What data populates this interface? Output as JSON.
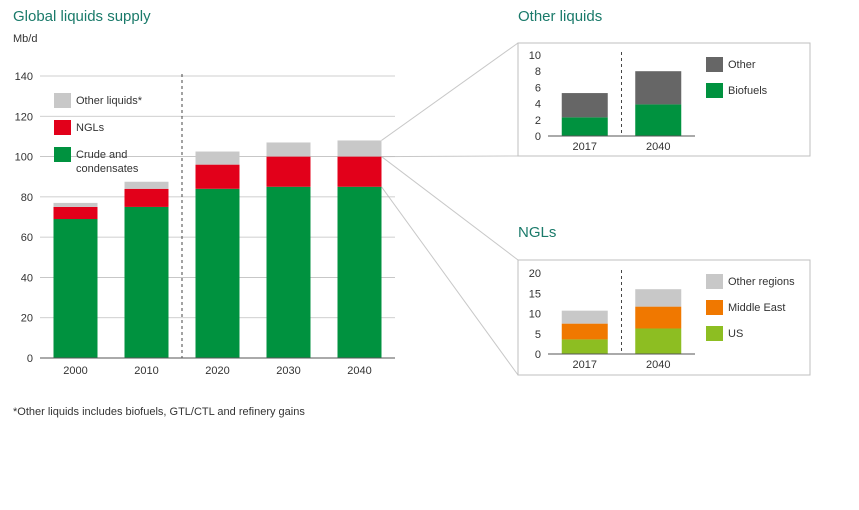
{
  "footnote": "*Other liquids includes biofuels, GTL/CTL and refinery gains",
  "colors": {
    "crude": "#00923f",
    "ngls": "#e2001a",
    "other_liquids": "#c8c8c8",
    "other_dark": "#666666",
    "biofuels": "#00923f",
    "ngl_other_regions": "#c8c8c8",
    "ngl_middle_east": "#f07800",
    "ngl_us": "#8dbe22",
    "title": "#1a7a6a"
  },
  "chart_data": [
    {
      "type": "bar",
      "stacked": true,
      "title": "Global liquids supply",
      "ylabel": "Mb/d",
      "categories": [
        "2000",
        "2010",
        "2020",
        "2030",
        "2040"
      ],
      "ylim": [
        0,
        140
      ],
      "yticks": [
        0,
        20,
        40,
        60,
        80,
        100,
        120,
        140
      ],
      "grid": true,
      "legend": "top-left",
      "series": [
        {
          "name": "Crude and condensates",
          "color_key": "crude",
          "values": [
            69,
            75,
            84,
            85,
            85
          ]
        },
        {
          "name": "NGLs",
          "color_key": "ngls",
          "values": [
            6,
            9,
            12,
            15,
            15
          ]
        },
        {
          "name": "Other liquids*",
          "color_key": "other_liquids",
          "values": [
            2,
            3.5,
            6.5,
            7,
            8
          ]
        }
      ],
      "legend_order": [
        2,
        1,
        0
      ]
    },
    {
      "type": "bar",
      "stacked": true,
      "title": "Other liquids",
      "categories": [
        "2017",
        "2040"
      ],
      "ylim": [
        0,
        10
      ],
      "yticks": [
        0,
        2,
        4,
        6,
        8,
        10
      ],
      "grid": false,
      "legend": "right",
      "series": [
        {
          "name": "Biofuels",
          "color_key": "biofuels",
          "values": [
            2.3,
            3.9
          ]
        },
        {
          "name": "Other",
          "color_key": "other_dark",
          "values": [
            3.0,
            4.1
          ]
        }
      ],
      "legend_order": [
        1,
        0
      ]
    },
    {
      "type": "bar",
      "stacked": true,
      "title": "NGLs",
      "categories": [
        "2017",
        "2040"
      ],
      "ylim": [
        0,
        20
      ],
      "yticks": [
        0,
        5,
        10,
        15,
        20
      ],
      "grid": false,
      "legend": "right",
      "series": [
        {
          "name": "US",
          "color_key": "ngl_us",
          "values": [
            3.6,
            6.3
          ]
        },
        {
          "name": "Middle East",
          "color_key": "ngl_middle_east",
          "values": [
            3.9,
            5.4
          ]
        },
        {
          "name": "Other regions",
          "color_key": "ngl_other_regions",
          "values": [
            3.2,
            4.3
          ]
        }
      ],
      "legend_order": [
        2,
        1,
        0
      ]
    }
  ]
}
